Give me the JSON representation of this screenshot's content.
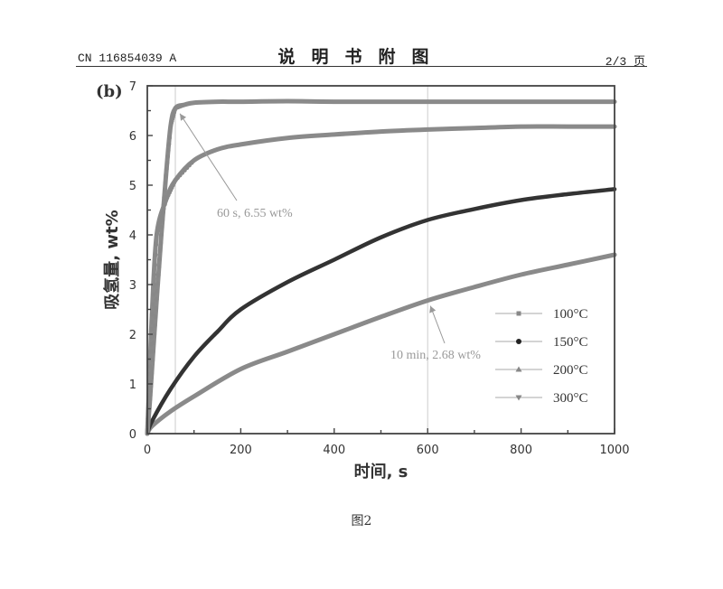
{
  "header": {
    "patent_number": "CN 116854039 A",
    "section_title": "说明书附图",
    "page": "2/3 页"
  },
  "figure": {
    "panel_label": "(b)",
    "caption": "图2"
  },
  "chart_data": {
    "type": "line",
    "title": "",
    "panel_label": "(b)",
    "xlabel": "时间, s",
    "ylabel": "吸氢量, wt%",
    "xlim": [
      0,
      1000
    ],
    "ylim": [
      0,
      7
    ],
    "xticks": [
      0,
      200,
      400,
      600,
      800,
      1000
    ],
    "yticks": [
      0,
      1,
      2,
      3,
      4,
      5,
      6,
      7
    ],
    "grid": false,
    "reference_lines_x": [
      60,
      600
    ],
    "legend_position": "lower right",
    "series": [
      {
        "name": "100°C",
        "marker": "square",
        "color": "#8a8a8a",
        "x": [
          0,
          10,
          50,
          100,
          200,
          300,
          400,
          500,
          600,
          700,
          800,
          900,
          1000
        ],
        "y": [
          0,
          0.15,
          0.45,
          0.75,
          1.3,
          1.65,
          2.0,
          2.35,
          2.68,
          2.95,
          3.2,
          3.4,
          3.6
        ]
      },
      {
        "name": "150°C",
        "marker": "circle",
        "color": "#333333",
        "x": [
          0,
          10,
          50,
          100,
          150,
          200,
          300,
          400,
          500,
          600,
          700,
          800,
          900,
          1000
        ],
        "y": [
          0,
          0.25,
          0.9,
          1.55,
          2.05,
          2.5,
          3.05,
          3.5,
          3.95,
          4.3,
          4.52,
          4.7,
          4.82,
          4.92
        ]
      },
      {
        "name": "200°C",
        "marker": "triangle-up",
        "color": "#8a8a8a",
        "x": [
          0,
          5,
          10,
          20,
          40,
          60,
          100,
          150,
          200,
          300,
          400,
          500,
          600,
          700,
          800,
          900,
          1000
        ],
        "y": [
          0,
          1.2,
          2.4,
          4.0,
          4.7,
          5.1,
          5.5,
          5.72,
          5.82,
          5.95,
          6.02,
          6.08,
          6.12,
          6.15,
          6.18,
          6.18,
          6.18
        ]
      },
      {
        "name": "300°C",
        "marker": "triangle-down",
        "color": "#8a8a8a",
        "x": [
          0,
          5,
          10,
          20,
          30,
          40,
          50,
          60,
          80,
          100,
          150,
          200,
          300,
          400,
          600,
          800,
          1000
        ],
        "y": [
          0,
          0.6,
          1.3,
          2.7,
          4.0,
          5.2,
          6.2,
          6.55,
          6.62,
          6.66,
          6.68,
          6.68,
          6.69,
          6.68,
          6.68,
          6.68,
          6.68
        ]
      }
    ],
    "annotations": [
      {
        "text": "60 s, 6.55 wt%",
        "x": 60,
        "y": 6.55
      },
      {
        "text": "10 min, 2.68 wt%",
        "x": 600,
        "y": 2.68
      }
    ]
  }
}
